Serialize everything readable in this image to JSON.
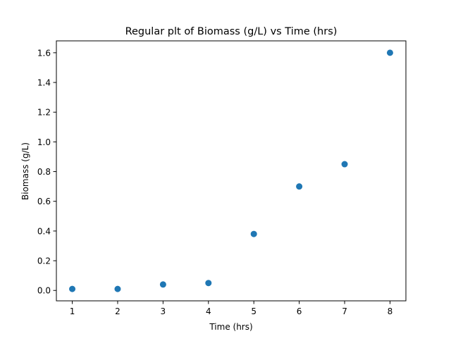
{
  "chart_data": {
    "type": "scatter",
    "title": "Regular plt of Biomass (g/L) vs Time (hrs)",
    "xlabel": "Time (hrs)",
    "ylabel": "Biomass (g/L)",
    "x": [
      1,
      2,
      3,
      4,
      5,
      6,
      7,
      8
    ],
    "y": [
      0.01,
      0.01,
      0.04,
      0.05,
      0.38,
      0.7,
      0.85,
      1.6
    ],
    "xlim": [
      0.65,
      8.35
    ],
    "ylim": [
      -0.07,
      1.68
    ],
    "xticks": [
      1,
      2,
      3,
      4,
      5,
      6,
      7,
      8
    ],
    "xtick_labels": [
      "1",
      "2",
      "3",
      "4",
      "5",
      "6",
      "7",
      "8"
    ],
    "yticks": [
      0.0,
      0.2,
      0.4,
      0.6,
      0.8,
      1.0,
      1.2,
      1.4,
      1.6
    ],
    "ytick_labels": [
      "0.0",
      "0.2",
      "0.4",
      "0.6",
      "0.8",
      "1.0",
      "1.2",
      "1.4",
      "1.6"
    ],
    "grid": false,
    "marker_color": "#1f77b4"
  }
}
